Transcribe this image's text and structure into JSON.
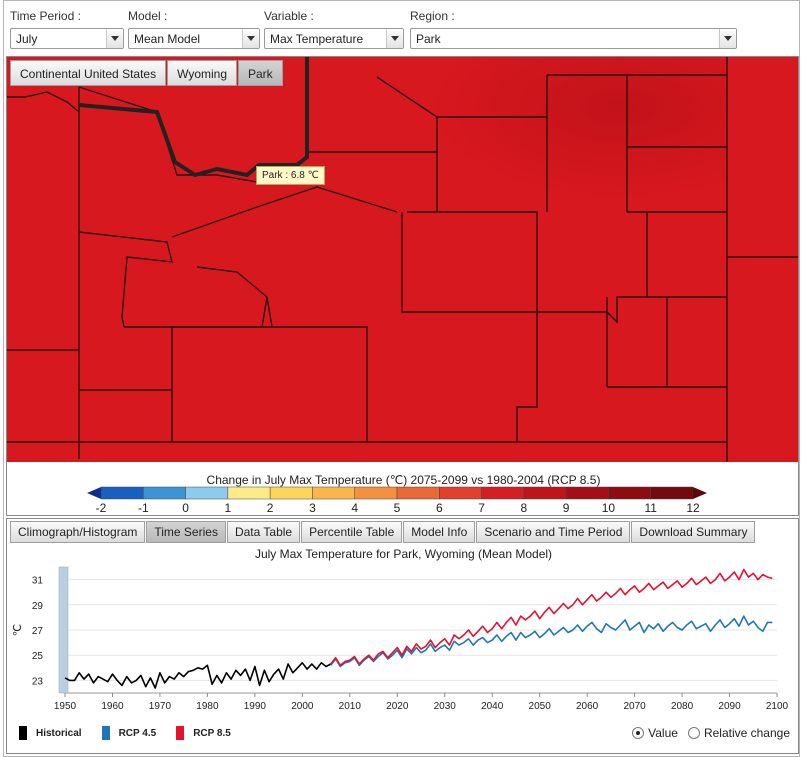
{
  "filters": {
    "time_period": {
      "label": "Time Period :",
      "value": "July"
    },
    "model": {
      "label": "Model :",
      "value": "Mean Model"
    },
    "variable": {
      "label": "Variable :",
      "value": "Max Temperature"
    },
    "region": {
      "label": "Region :",
      "value": "Park"
    }
  },
  "map": {
    "tabs": [
      "Continental United States",
      "Wyoming",
      "Park"
    ],
    "active_tab": "Park",
    "tooltip": "Park : 6.8 ℃",
    "fill_color": "#d7181e",
    "dark_fill_color": "#c6121b",
    "legend": {
      "title": "Change in July Max Temperature (℃) 2075-2099 vs 1980-2004 (RCP 8.5)",
      "ticks": [
        "-2",
        "-1",
        "0",
        "1",
        "2",
        "3",
        "4",
        "5",
        "6",
        "7",
        "8",
        "9",
        "10",
        "11",
        "12"
      ],
      "colors": [
        "#0b2d92",
        "#1760c0",
        "#3b94d6",
        "#8ccbee",
        "#fdeb8a",
        "#fdd55b",
        "#fbb54a",
        "#f49140",
        "#ea6a37",
        "#e0402d",
        "#d31f23",
        "#bd1519",
        "#a40f15",
        "#8c0c11",
        "#730a0f",
        "#5c070c"
      ]
    }
  },
  "bottom_tabs": [
    "Climograph/Histogram",
    "Time Series",
    "Data Table",
    "Percentile Table",
    "Model Info",
    "Scenario and Time Period",
    "Download Summary"
  ],
  "active_bottom_tab": "Time Series",
  "chart_data": {
    "type": "line",
    "title": "July Max Temperature for Park, Wyoming (Mean Model)",
    "ylabel": "℃",
    "xlabel": "",
    "xlim": [
      1950,
      2100
    ],
    "ylim": [
      22,
      32
    ],
    "x_ticks": [
      1950,
      1960,
      1970,
      1980,
      1990,
      2000,
      2010,
      2020,
      2030,
      2040,
      2050,
      2060,
      2070,
      2080,
      2090,
      2100
    ],
    "y_ticks": [
      23,
      25,
      27,
      29,
      31
    ],
    "grid": true,
    "legend_position": "bottom-left",
    "series": [
      {
        "name": "Historical",
        "color": "#000000",
        "x_start": 1950,
        "values": [
          23.2,
          23.0,
          23.0,
          23.6,
          23.1,
          23.5,
          22.8,
          23.3,
          23.1,
          22.9,
          23.5,
          23.0,
          22.6,
          23.3,
          22.8,
          23.0,
          23.4,
          22.5,
          23.2,
          22.4,
          23.6,
          22.8,
          23.3,
          23.1,
          23.6,
          23.3,
          23.7,
          23.8,
          24.0,
          23.9,
          24.2,
          22.7,
          23.4,
          22.8,
          23.6,
          23.1,
          23.8,
          23.4,
          23.9,
          23.0,
          24.1,
          22.6,
          23.8,
          22.9,
          23.5,
          23.9,
          23.1,
          24.3,
          23.6,
          24.0,
          24.4,
          23.9,
          24.3,
          23.9,
          24.4,
          24.1,
          24.3
        ]
      },
      {
        "name": "RCP 4.5",
        "color": "#1f77b4",
        "x_start": 2006,
        "values": [
          24.2,
          24.7,
          24.1,
          24.4,
          24.5,
          24.8,
          24.2,
          24.6,
          24.9,
          24.5,
          24.9,
          25.2,
          24.7,
          25.0,
          25.4,
          24.8,
          25.5,
          25.1,
          25.6,
          25.2,
          25.4,
          25.9,
          25.3,
          25.6,
          25.8,
          25.4,
          26.1,
          25.8,
          26.0,
          26.3,
          25.8,
          26.2,
          26.4,
          26.0,
          26.2,
          26.6,
          26.1,
          26.5,
          26.8,
          26.2,
          26.8,
          26.4,
          26.6,
          26.9,
          26.4,
          26.7,
          27.1,
          26.6,
          26.9,
          27.2,
          26.8,
          27.0,
          27.4,
          26.9,
          27.3,
          27.6,
          27.1,
          26.8,
          27.5,
          27.2,
          27.0,
          27.4,
          27.8,
          27.0,
          27.3,
          27.6,
          26.8,
          27.4,
          27.1,
          27.5,
          26.9,
          27.3,
          27.6,
          27.2,
          27.0,
          27.4,
          27.7,
          27.1,
          27.3,
          27.5,
          26.9,
          27.4,
          27.8,
          27.2,
          27.5,
          27.9,
          27.3,
          28.1,
          27.4,
          27.7,
          27.2,
          26.9,
          27.6,
          27.6
        ]
      },
      {
        "name": "RCP 8.5",
        "color": "#e8102e",
        "x_start": 2006,
        "values": [
          24.3,
          24.8,
          24.2,
          24.5,
          24.6,
          24.9,
          24.3,
          24.7,
          25.0,
          24.6,
          25.1,
          25.3,
          24.8,
          25.2,
          25.6,
          25.0,
          25.7,
          25.3,
          25.9,
          25.5,
          25.7,
          26.2,
          25.6,
          26.0,
          26.3,
          25.8,
          26.6,
          26.3,
          26.6,
          27.0,
          26.5,
          26.9,
          27.3,
          26.8,
          27.1,
          27.6,
          27.1,
          27.6,
          28.0,
          27.4,
          28.1,
          27.8,
          28.1,
          28.5,
          27.9,
          28.4,
          28.8,
          28.3,
          28.7,
          29.1,
          28.7,
          29.0,
          29.5,
          29.0,
          29.4,
          29.8,
          29.3,
          29.6,
          30.0,
          29.6,
          29.9,
          30.3,
          29.8,
          30.2,
          30.5,
          30.0,
          30.3,
          30.7,
          30.2,
          30.5,
          30.8,
          30.3,
          30.6,
          30.9,
          30.4,
          30.7,
          31.1,
          30.6,
          30.9,
          31.2,
          30.7,
          31.0,
          31.5,
          30.9,
          31.2,
          31.6,
          31.0,
          31.8,
          31.2,
          31.5,
          31.0,
          31.4,
          31.2,
          31.1
        ]
      }
    ]
  },
  "value_mode": {
    "options": [
      "Value",
      "Relative change"
    ],
    "selected": "Value"
  }
}
